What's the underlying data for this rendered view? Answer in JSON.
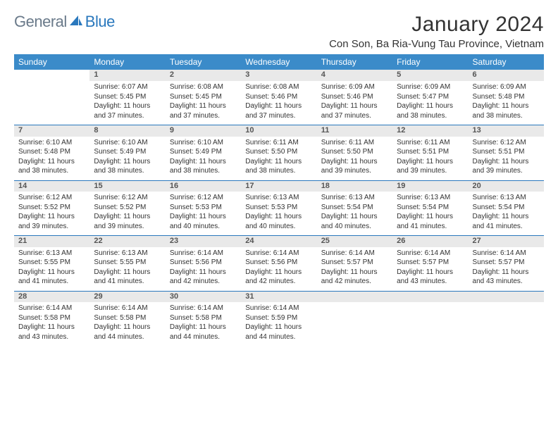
{
  "brand": {
    "part1": "General",
    "part2": "Blue"
  },
  "title": "January 2024",
  "location": "Con Son, Ba Ria-Vung Tau Province, Vietnam",
  "weekdays": [
    "Sunday",
    "Monday",
    "Tuesday",
    "Wednesday",
    "Thursday",
    "Friday",
    "Saturday"
  ],
  "colors": {
    "header_bg": "#3b8bc9",
    "accent_line": "#2a78bd",
    "daynum_bg": "#e9e9e9",
    "brand_gray": "#6a7a8a",
    "brand_blue": "#2a78bd",
    "text": "#333333",
    "background": "#ffffff"
  },
  "typography": {
    "body_fontsize": 10,
    "daynum_fontsize": 11,
    "header_fontsize": 12,
    "title_fontsize": 30,
    "location_fontsize": 15
  },
  "layout": {
    "columns": 7,
    "rows": 5,
    "first_weekday_index": 1,
    "days_in_month": 31
  },
  "days": [
    {
      "n": "1",
      "sunrise": "Sunrise: 6:07 AM",
      "sunset": "Sunset: 5:45 PM",
      "d1": "Daylight: 11 hours",
      "d2": "and 37 minutes."
    },
    {
      "n": "2",
      "sunrise": "Sunrise: 6:08 AM",
      "sunset": "Sunset: 5:45 PM",
      "d1": "Daylight: 11 hours",
      "d2": "and 37 minutes."
    },
    {
      "n": "3",
      "sunrise": "Sunrise: 6:08 AM",
      "sunset": "Sunset: 5:46 PM",
      "d1": "Daylight: 11 hours",
      "d2": "and 37 minutes."
    },
    {
      "n": "4",
      "sunrise": "Sunrise: 6:09 AM",
      "sunset": "Sunset: 5:46 PM",
      "d1": "Daylight: 11 hours",
      "d2": "and 37 minutes."
    },
    {
      "n": "5",
      "sunrise": "Sunrise: 6:09 AM",
      "sunset": "Sunset: 5:47 PM",
      "d1": "Daylight: 11 hours",
      "d2": "and 38 minutes."
    },
    {
      "n": "6",
      "sunrise": "Sunrise: 6:09 AM",
      "sunset": "Sunset: 5:48 PM",
      "d1": "Daylight: 11 hours",
      "d2": "and 38 minutes."
    },
    {
      "n": "7",
      "sunrise": "Sunrise: 6:10 AM",
      "sunset": "Sunset: 5:48 PM",
      "d1": "Daylight: 11 hours",
      "d2": "and 38 minutes."
    },
    {
      "n": "8",
      "sunrise": "Sunrise: 6:10 AM",
      "sunset": "Sunset: 5:49 PM",
      "d1": "Daylight: 11 hours",
      "d2": "and 38 minutes."
    },
    {
      "n": "9",
      "sunrise": "Sunrise: 6:10 AM",
      "sunset": "Sunset: 5:49 PM",
      "d1": "Daylight: 11 hours",
      "d2": "and 38 minutes."
    },
    {
      "n": "10",
      "sunrise": "Sunrise: 6:11 AM",
      "sunset": "Sunset: 5:50 PM",
      "d1": "Daylight: 11 hours",
      "d2": "and 38 minutes."
    },
    {
      "n": "11",
      "sunrise": "Sunrise: 6:11 AM",
      "sunset": "Sunset: 5:50 PM",
      "d1": "Daylight: 11 hours",
      "d2": "and 39 minutes."
    },
    {
      "n": "12",
      "sunrise": "Sunrise: 6:11 AM",
      "sunset": "Sunset: 5:51 PM",
      "d1": "Daylight: 11 hours",
      "d2": "and 39 minutes."
    },
    {
      "n": "13",
      "sunrise": "Sunrise: 6:12 AM",
      "sunset": "Sunset: 5:51 PM",
      "d1": "Daylight: 11 hours",
      "d2": "and 39 minutes."
    },
    {
      "n": "14",
      "sunrise": "Sunrise: 6:12 AM",
      "sunset": "Sunset: 5:52 PM",
      "d1": "Daylight: 11 hours",
      "d2": "and 39 minutes."
    },
    {
      "n": "15",
      "sunrise": "Sunrise: 6:12 AM",
      "sunset": "Sunset: 5:52 PM",
      "d1": "Daylight: 11 hours",
      "d2": "and 39 minutes."
    },
    {
      "n": "16",
      "sunrise": "Sunrise: 6:12 AM",
      "sunset": "Sunset: 5:53 PM",
      "d1": "Daylight: 11 hours",
      "d2": "and 40 minutes."
    },
    {
      "n": "17",
      "sunrise": "Sunrise: 6:13 AM",
      "sunset": "Sunset: 5:53 PM",
      "d1": "Daylight: 11 hours",
      "d2": "and 40 minutes."
    },
    {
      "n": "18",
      "sunrise": "Sunrise: 6:13 AM",
      "sunset": "Sunset: 5:54 PM",
      "d1": "Daylight: 11 hours",
      "d2": "and 40 minutes."
    },
    {
      "n": "19",
      "sunrise": "Sunrise: 6:13 AM",
      "sunset": "Sunset: 5:54 PM",
      "d1": "Daylight: 11 hours",
      "d2": "and 41 minutes."
    },
    {
      "n": "20",
      "sunrise": "Sunrise: 6:13 AM",
      "sunset": "Sunset: 5:54 PM",
      "d1": "Daylight: 11 hours",
      "d2": "and 41 minutes."
    },
    {
      "n": "21",
      "sunrise": "Sunrise: 6:13 AM",
      "sunset": "Sunset: 5:55 PM",
      "d1": "Daylight: 11 hours",
      "d2": "and 41 minutes."
    },
    {
      "n": "22",
      "sunrise": "Sunrise: 6:13 AM",
      "sunset": "Sunset: 5:55 PM",
      "d1": "Daylight: 11 hours",
      "d2": "and 41 minutes."
    },
    {
      "n": "23",
      "sunrise": "Sunrise: 6:14 AM",
      "sunset": "Sunset: 5:56 PM",
      "d1": "Daylight: 11 hours",
      "d2": "and 42 minutes."
    },
    {
      "n": "24",
      "sunrise": "Sunrise: 6:14 AM",
      "sunset": "Sunset: 5:56 PM",
      "d1": "Daylight: 11 hours",
      "d2": "and 42 minutes."
    },
    {
      "n": "25",
      "sunrise": "Sunrise: 6:14 AM",
      "sunset": "Sunset: 5:57 PM",
      "d1": "Daylight: 11 hours",
      "d2": "and 42 minutes."
    },
    {
      "n": "26",
      "sunrise": "Sunrise: 6:14 AM",
      "sunset": "Sunset: 5:57 PM",
      "d1": "Daylight: 11 hours",
      "d2": "and 43 minutes."
    },
    {
      "n": "27",
      "sunrise": "Sunrise: 6:14 AM",
      "sunset": "Sunset: 5:57 PM",
      "d1": "Daylight: 11 hours",
      "d2": "and 43 minutes."
    },
    {
      "n": "28",
      "sunrise": "Sunrise: 6:14 AM",
      "sunset": "Sunset: 5:58 PM",
      "d1": "Daylight: 11 hours",
      "d2": "and 43 minutes."
    },
    {
      "n": "29",
      "sunrise": "Sunrise: 6:14 AM",
      "sunset": "Sunset: 5:58 PM",
      "d1": "Daylight: 11 hours",
      "d2": "and 44 minutes."
    },
    {
      "n": "30",
      "sunrise": "Sunrise: 6:14 AM",
      "sunset": "Sunset: 5:58 PM",
      "d1": "Daylight: 11 hours",
      "d2": "and 44 minutes."
    },
    {
      "n": "31",
      "sunrise": "Sunrise: 6:14 AM",
      "sunset": "Sunset: 5:59 PM",
      "d1": "Daylight: 11 hours",
      "d2": "and 44 minutes."
    }
  ]
}
